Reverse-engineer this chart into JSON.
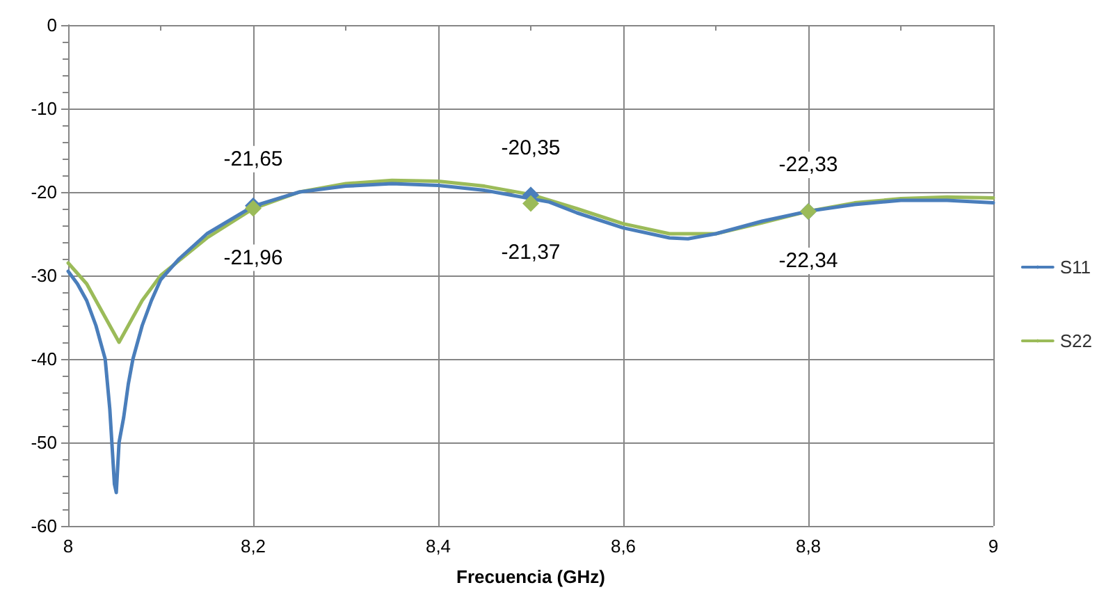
{
  "chart_data": {
    "type": "line",
    "xlabel": "Frecuencia (GHz)",
    "xlim": [
      8,
      9
    ],
    "xticks": [
      8,
      {
        "value": 8.2,
        "label": "8,2"
      },
      {
        "value": 8.4,
        "label": "8,4"
      },
      {
        "value": 8.6,
        "label": "8,6"
      },
      {
        "value": 8.8,
        "label": "8,8"
      },
      9
    ],
    "ylim": [
      -60,
      0
    ],
    "yticks": [
      -60,
      -50,
      -40,
      -30,
      -20,
      -10,
      0
    ],
    "grid": true,
    "legend": "right",
    "marker": "none",
    "line_style": "solid",
    "series": [
      {
        "name": "S11",
        "color": "#4a7ebb",
        "x": [
          8,
          8.01,
          8.02,
          8.03,
          8.04,
          8.045,
          8.05,
          8.052,
          8.055,
          8.06,
          8.065,
          8.07,
          8.08,
          8.09,
          8.1,
          8.12,
          8.15,
          8.2,
          8.25,
          8.3,
          8.35,
          8.4,
          8.45,
          8.48,
          8.52,
          8.55,
          8.6,
          8.65,
          8.67,
          8.7,
          8.75,
          8.8,
          8.85,
          8.9,
          8.95,
          9
        ],
        "values": [
          -29.5,
          -31,
          -33,
          -36,
          -40,
          -46,
          -55,
          -56,
          -50,
          -47,
          -43,
          -40,
          -36,
          -33,
          -30.5,
          -28,
          -25,
          -21.7,
          -20,
          -19.3,
          -19,
          -19.2,
          -19.8,
          -20.4,
          -21.2,
          -22.5,
          -24.3,
          -25.5,
          -25.6,
          -25,
          -23.5,
          -22.3,
          -21.5,
          -21,
          -21,
          -21.3
        ]
      },
      {
        "name": "S22",
        "color": "#9bbb59",
        "x": [
          8,
          8.02,
          8.04,
          8.05,
          8.055,
          8.06,
          8.07,
          8.08,
          8.1,
          8.15,
          8.2,
          8.25,
          8.3,
          8.35,
          8.4,
          8.45,
          8.5,
          8.55,
          8.6,
          8.65,
          8.7,
          8.75,
          8.8,
          8.85,
          8.9,
          8.95,
          9
        ],
        "values": [
          -28.5,
          -31,
          -35,
          -37,
          -38,
          -37,
          -35,
          -33,
          -30,
          -25.5,
          -22,
          -20,
          -19,
          -18.6,
          -18.7,
          -19.3,
          -20.3,
          -22,
          -23.8,
          -25,
          -25,
          -23.7,
          -22.3,
          -21.3,
          -20.8,
          -20.6,
          -20.7
        ]
      }
    ],
    "annotations": [
      {
        "text": "-21,65",
        "x": 8.2,
        "y": -21.65
      },
      {
        "text": "-21,96",
        "x": 8.2,
        "y": -21.96
      },
      {
        "text": "-20,35",
        "x": 8.5,
        "y": -20.35
      },
      {
        "text": "-21,37",
        "x": 8.5,
        "y": -21.37
      },
      {
        "text": "-22,33",
        "x": 8.8,
        "y": -22.33
      },
      {
        "text": "-22,34",
        "x": 8.8,
        "y": -22.34
      }
    ]
  }
}
